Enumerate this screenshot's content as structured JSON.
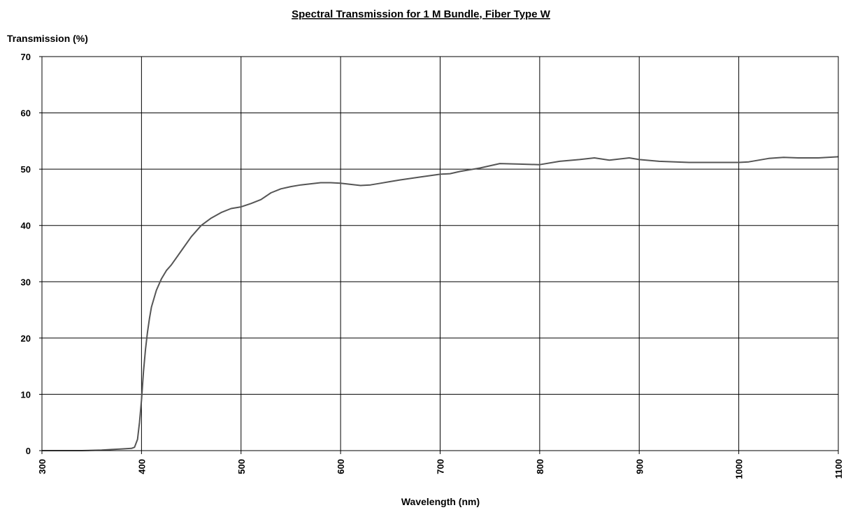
{
  "chart_data": {
    "type": "line",
    "title": "Spectral Transmission for 1 M Bundle, Fiber Type W",
    "xlabel": "Wavelength (nm)",
    "ylabel": "Transmission (%)",
    "xlim": [
      300,
      1100
    ],
    "ylim": [
      0,
      70
    ],
    "xticks": [
      "300",
      "400",
      "500",
      "600",
      "700",
      "800",
      "900",
      "1000",
      "1100"
    ],
    "yticks": [
      "0",
      "10",
      "20",
      "30",
      "40",
      "50",
      "60",
      "70"
    ],
    "grid": true,
    "legend": "none",
    "line_color": "#555555",
    "series": [
      {
        "x": [
          300,
          320,
          340,
          360,
          370,
          380,
          390,
          393,
          396,
          398,
          400,
          402,
          404,
          406,
          408,
          410,
          415,
          420,
          425,
          430,
          440,
          450,
          460,
          470,
          480,
          490,
          500,
          510,
          520,
          530,
          540,
          550,
          560,
          570,
          580,
          590,
          600,
          610,
          620,
          630,
          640,
          650,
          660,
          680,
          700,
          710,
          720,
          740,
          760,
          780,
          800,
          820,
          840,
          855,
          870,
          890,
          900,
          920,
          950,
          980,
          1000,
          1010,
          1030,
          1045,
          1060,
          1080,
          1100
        ],
        "y": [
          0,
          0,
          0,
          0.1,
          0.2,
          0.3,
          0.4,
          0.6,
          2,
          5,
          9,
          14,
          18,
          21,
          23.5,
          25.5,
          28.5,
          30.5,
          32,
          33,
          35.5,
          38,
          40,
          41.3,
          42.3,
          43,
          43.3,
          43.9,
          44.6,
          45.8,
          46.5,
          46.9,
          47.2,
          47.4,
          47.6,
          47.6,
          47.5,
          47.3,
          47.1,
          47.2,
          47.5,
          47.8,
          48.1,
          48.6,
          49.1,
          49.2,
          49.6,
          50.2,
          51.0,
          50.9,
          50.8,
          51.4,
          51.7,
          52.0,
          51.6,
          52.0,
          51.7,
          51.4,
          51.2,
          51.2,
          51.2,
          51.3,
          51.9,
          52.1,
          52.0,
          52.0,
          52.2
        ]
      }
    ]
  }
}
